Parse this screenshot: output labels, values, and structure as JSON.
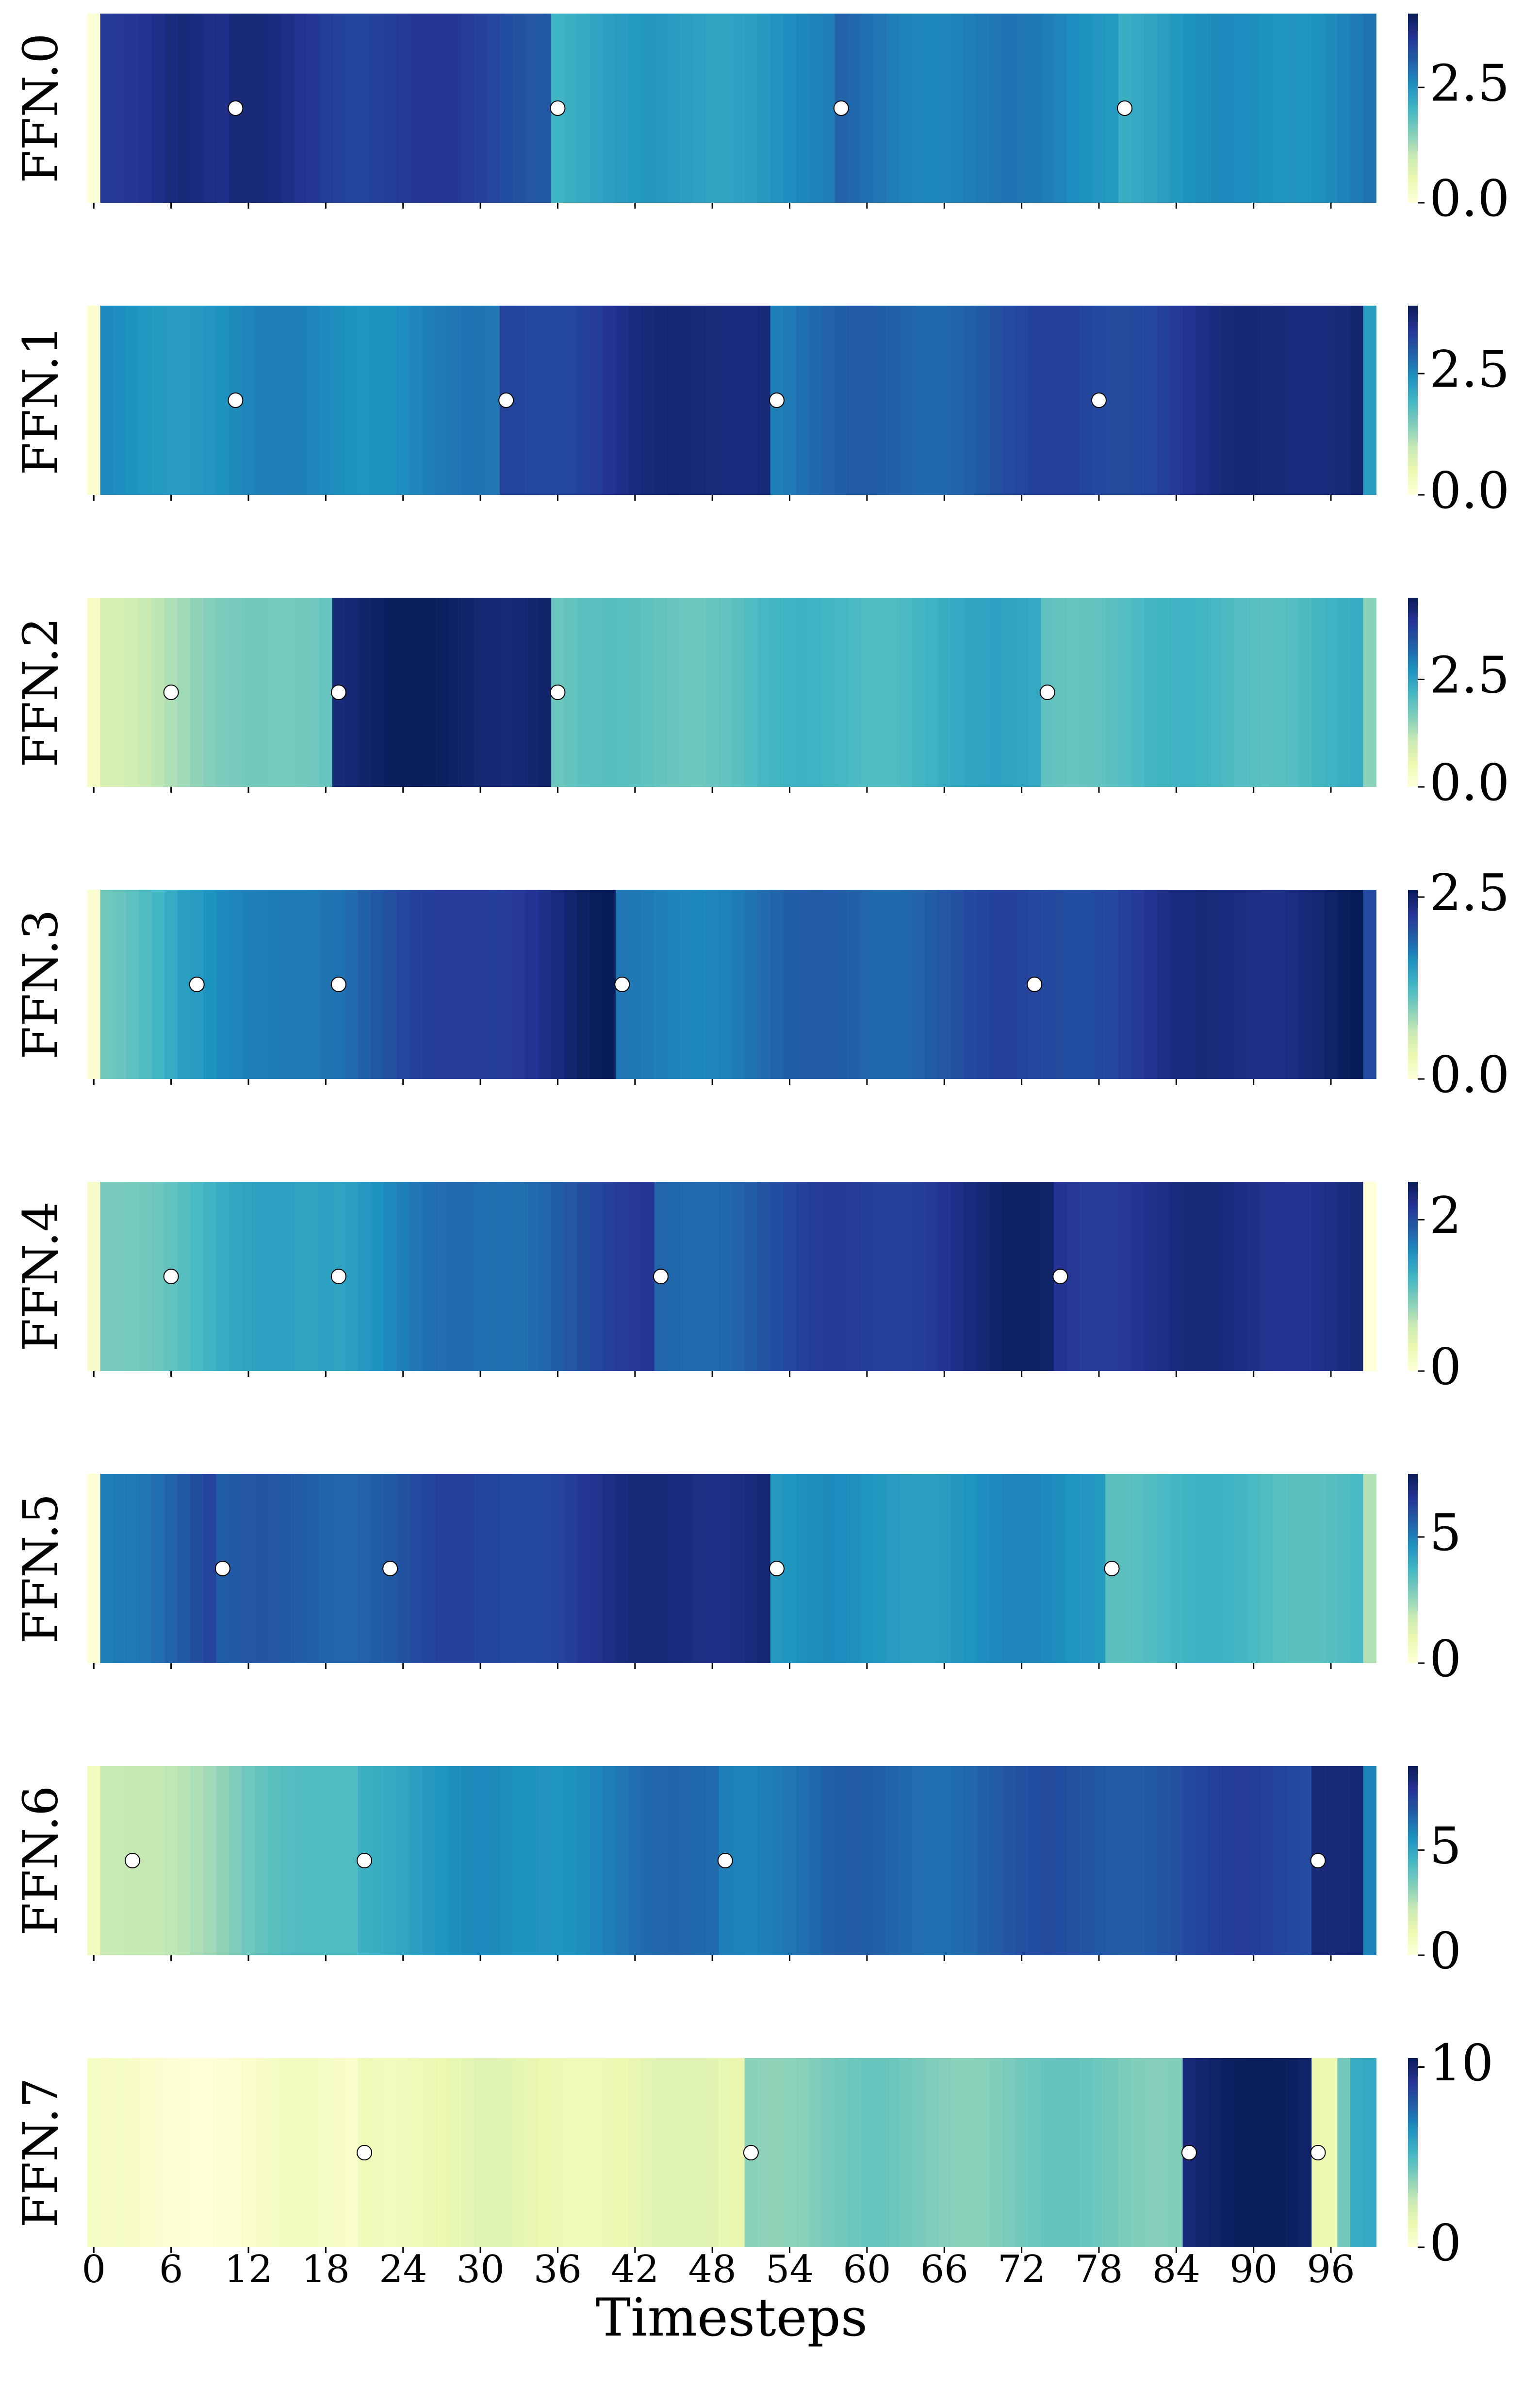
{
  "chart_data": {
    "type": "heatmap",
    "colormap": "YlGnBu",
    "xlabel": "Timesteps",
    "x_ticks": [
      "0",
      "6",
      "12",
      "18",
      "24",
      "30",
      "36",
      "42",
      "48",
      "54",
      "60",
      "66",
      "72",
      "78",
      "84",
      "90",
      "96"
    ],
    "n_timesteps": 100,
    "marker_style": {
      "fill": "#ffffff",
      "stroke": "#000000"
    },
    "panels": [
      {
        "label": "FFN.0",
        "vmin": 0,
        "vmax": 4.1,
        "colorbar_ticks": [
          "0.0",
          "2.5"
        ],
        "markers": [
          11,
          36,
          58,
          80
        ],
        "segments": [
          {
            "start": 0,
            "end": 1,
            "from": 0.0,
            "to": 0.0
          },
          {
            "start": 1,
            "end": 7,
            "from": 3.5,
            "to": 3.9
          },
          {
            "start": 7,
            "end": 11,
            "from": 3.9,
            "to": 3.6
          },
          {
            "start": 11,
            "end": 36,
            "from": 3.7,
            "to": 3.3
          },
          {
            "start": 36,
            "end": 58,
            "from": 2.2,
            "to": 2.6
          },
          {
            "start": 58,
            "end": 80,
            "from": 2.9,
            "to": 2.6
          },
          {
            "start": 80,
            "end": 100,
            "from": 2.3,
            "to": 2.8
          }
        ]
      },
      {
        "label": "FFN.1",
        "vmin": 0,
        "vmax": 3.9,
        "colorbar_ticks": [
          "0.0",
          "2.5"
        ],
        "markers": [
          11,
          32,
          53,
          78
        ],
        "segments": [
          {
            "start": 0,
            "end": 1,
            "from": 0.0,
            "to": 0.0
          },
          {
            "start": 1,
            "end": 32,
            "from": 2.4,
            "to": 2.6
          },
          {
            "start": 32,
            "end": 53,
            "from": 3.2,
            "to": 3.75
          },
          {
            "start": 53,
            "end": 78,
            "from": 2.7,
            "to": 3.2
          },
          {
            "start": 78,
            "end": 99,
            "from": 3.2,
            "to": 3.8
          },
          {
            "start": 99,
            "end": 100,
            "from": 2.3,
            "to": 2.3
          }
        ]
      },
      {
        "label": "FFN.2",
        "vmin": 0,
        "vmax": 4.4,
        "colorbar_ticks": [
          "0.0",
          "2.5"
        ],
        "markers": [
          6,
          19,
          36,
          74
        ],
        "segments": [
          {
            "start": 0,
            "end": 1,
            "from": 0.4,
            "to": 0.4
          },
          {
            "start": 1,
            "end": 19,
            "from": 1.0,
            "to": 2.0
          },
          {
            "start": 19,
            "end": 36,
            "from": 4.2,
            "to": 4.3
          },
          {
            "start": 36,
            "end": 74,
            "from": 1.8,
            "to": 2.4
          },
          {
            "start": 74,
            "end": 99,
            "from": 2.0,
            "to": 2.2
          },
          {
            "start": 99,
            "end": 100,
            "from": 1.4,
            "to": 1.4
          }
        ]
      },
      {
        "label": "FFN.3",
        "vmin": 0,
        "vmax": 2.6,
        "colorbar_ticks": [
          "0.0",
          "2.5"
        ],
        "markers": [
          8,
          19,
          41,
          73
        ],
        "segments": [
          {
            "start": 0,
            "end": 1,
            "from": 0.1,
            "to": 0.1
          },
          {
            "start": 1,
            "end": 8,
            "from": 1.1,
            "to": 1.5
          },
          {
            "start": 8,
            "end": 19,
            "from": 1.5,
            "to": 1.9
          },
          {
            "start": 19,
            "end": 41,
            "from": 1.9,
            "to": 2.55
          },
          {
            "start": 41,
            "end": 73,
            "from": 1.7,
            "to": 2.1
          },
          {
            "start": 73,
            "end": 99,
            "from": 2.1,
            "to": 2.55
          },
          {
            "start": 99,
            "end": 100,
            "from": 2.0,
            "to": 2.0
          }
        ]
      },
      {
        "label": "FFN.4",
        "vmin": 0,
        "vmax": 2.5,
        "colorbar_ticks": [
          "0",
          "2"
        ],
        "markers": [
          6,
          19,
          44,
          75
        ],
        "segments": [
          {
            "start": 0,
            "end": 1,
            "from": 0.1,
            "to": 0.1
          },
          {
            "start": 1,
            "end": 19,
            "from": 1.0,
            "to": 1.5
          },
          {
            "start": 19,
            "end": 44,
            "from": 1.5,
            "to": 2.1
          },
          {
            "start": 44,
            "end": 75,
            "from": 1.8,
            "to": 2.4
          },
          {
            "start": 75,
            "end": 99,
            "from": 2.2,
            "to": 2.3
          }
        ]
      },
      {
        "label": "FFN.5",
        "vmin": 0,
        "vmax": 7.5,
        "colorbar_ticks": [
          "0",
          "5"
        ],
        "markers": [
          10,
          23,
          53,
          79
        ],
        "segments": [
          {
            "start": 0,
            "end": 1,
            "from": 0.0,
            "to": 0.0
          },
          {
            "start": 1,
            "end": 10,
            "from": 5.0,
            "to": 6.2
          },
          {
            "start": 10,
            "end": 23,
            "from": 5.5,
            "to": 5.8
          },
          {
            "start": 23,
            "end": 53,
            "from": 5.8,
            "to": 7.2
          },
          {
            "start": 53,
            "end": 79,
            "from": 4.5,
            "to": 4.7
          },
          {
            "start": 79,
            "end": 99,
            "from": 3.6,
            "to": 3.6
          },
          {
            "start": 99,
            "end": 100,
            "from": 2.0,
            "to": 2.0
          }
        ]
      },
      {
        "label": "FFN.6",
        "vmin": 0,
        "vmax": 9,
        "colorbar_ticks": [
          "0",
          "5"
        ],
        "markers": [
          3,
          21,
          49,
          95
        ],
        "segments": [
          {
            "start": 0,
            "end": 1,
            "from": 0.5,
            "to": 0.5
          },
          {
            "start": 1,
            "end": 21,
            "from": 2.0,
            "to": 4.5
          },
          {
            "start": 21,
            "end": 49,
            "from": 5.0,
            "to": 6.5
          },
          {
            "start": 49,
            "end": 95,
            "from": 6.2,
            "to": 7.5
          },
          {
            "start": 95,
            "end": 99,
            "from": 8.7,
            "to": 8.7
          },
          {
            "start": 99,
            "end": 100,
            "from": 6.0,
            "to": 6.0
          }
        ]
      },
      {
        "label": "FFN.7",
        "vmin": 0,
        "vmax": 10.5,
        "colorbar_ticks": [
          "0",
          "10"
        ],
        "markers": [
          21,
          51,
          85,
          95
        ],
        "segments": [
          {
            "start": 0,
            "end": 21,
            "from": 0.3,
            "to": 0.5
          },
          {
            "start": 21,
            "end": 51,
            "from": 1.3,
            "to": 1.5
          },
          {
            "start": 51,
            "end": 85,
            "from": 4.0,
            "to": 4.2
          },
          {
            "start": 85,
            "end": 95,
            "from": 10.0,
            "to": 10.2
          },
          {
            "start": 95,
            "end": 97,
            "from": 1.5,
            "to": 1.5
          },
          {
            "start": 97,
            "end": 98,
            "from": 4.5,
            "to": 4.5
          },
          {
            "start": 98,
            "end": 100,
            "from": 6.0,
            "to": 6.0
          }
        ]
      }
    ]
  }
}
